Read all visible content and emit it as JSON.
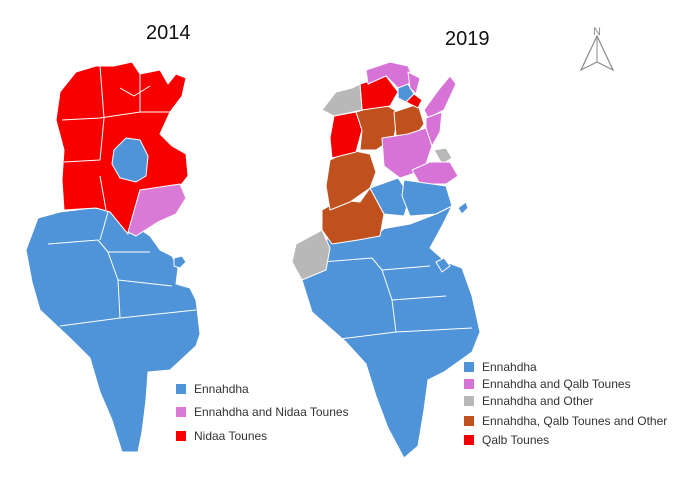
{
  "colors": {
    "ennahdha": "#4f93d8",
    "ennahdha_nidaa": "#d97ad6",
    "nidaa": "#f90000",
    "ennahdha_qalb": "#d772d6",
    "ennahdha_other": "#b8b8b8",
    "ennahdha_qalb_other": "#c0501e",
    "qalb": "#f50000",
    "border": "#ffffff"
  },
  "maps": [
    {
      "year": "2014",
      "legend": [
        {
          "label": "Ennahdha",
          "color": "#4f93d8"
        },
        {
          "label": "Ennahdha and Nidaa Tounes",
          "color": "#d97ad6"
        },
        {
          "label": "Nidaa Tounes",
          "color": "#f90000"
        }
      ]
    },
    {
      "year": "2019",
      "legend": [
        {
          "label": "Ennahdha",
          "color": "#4f93d8"
        },
        {
          "label": "Ennahdha and Qalb Tounes",
          "color": "#d772d6"
        },
        {
          "label": "Ennahdha and Other",
          "color": "#b8b8b8"
        },
        {
          "label": "Ennahdha, Qalb Tounes and Other",
          "color": "#c0501e"
        },
        {
          "label": "Qalb Tounes",
          "color": "#f50000"
        }
      ]
    }
  ],
  "north_arrow": {
    "label": "N",
    "icon": "north-arrow-icon"
  }
}
